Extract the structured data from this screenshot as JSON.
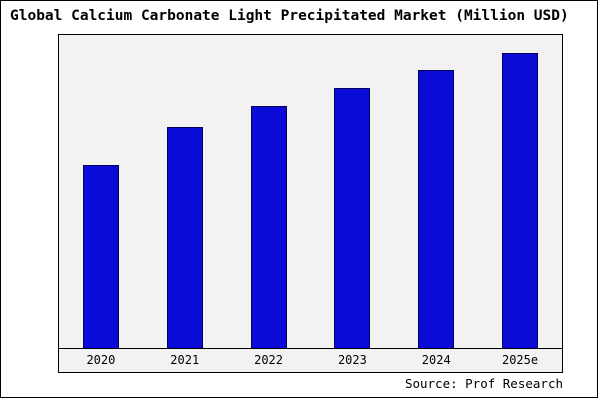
{
  "title": "Global Calcium Carbonate Light Precipitated Market (Million USD)",
  "source": "Source: Prof Research",
  "colors": {
    "bar_fill": "#0b0bd8",
    "bar_border": "#000060",
    "plot_background": "#f2f2f2",
    "frame_border": "#000000"
  },
  "chart_data": {
    "type": "bar",
    "title": "Global Calcium Carbonate Light Precipitated Market (Million USD)",
    "categories": [
      "2020",
      "2021",
      "2022",
      "2023",
      "2024",
      "2025e"
    ],
    "values": [
      62,
      75,
      82,
      88,
      94,
      100
    ],
    "xlabel": "",
    "ylabel": "",
    "ylim": [
      0,
      106
    ],
    "grid": false,
    "legend": false,
    "annotations": [
      "Source: Prof Research"
    ]
  }
}
